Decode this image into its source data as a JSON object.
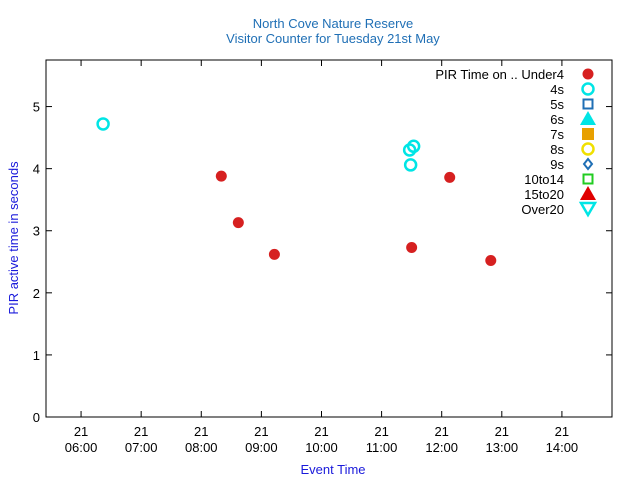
{
  "chart_data": {
    "type": "scatter",
    "title": "North Cove Nature Reserve",
    "subtitle": "Visitor Counter for Tuesday 21st May",
    "xlabel": "Event Time",
    "ylabel": "PIR active time in seconds",
    "legend_title": "PIR Time on .. Under4",
    "legend_position": "top-right",
    "grid": false,
    "xlim": [
      "05:25",
      "14:50"
    ],
    "ylim": [
      0,
      5.75
    ],
    "x_ticks": [
      {
        "day": "21",
        "time": "06:00"
      },
      {
        "day": "21",
        "time": "07:00"
      },
      {
        "day": "21",
        "time": "08:00"
      },
      {
        "day": "21",
        "time": "09:00"
      },
      {
        "day": "21",
        "time": "10:00"
      },
      {
        "day": "21",
        "time": "11:00"
      },
      {
        "day": "21",
        "time": "12:00"
      },
      {
        "day": "21",
        "time": "13:00"
      },
      {
        "day": "21",
        "time": "14:00"
      }
    ],
    "y_ticks": [
      "0",
      "1",
      "2",
      "3",
      "4",
      "5"
    ],
    "series": [
      {
        "name": "Under4",
        "marker": "filled-circle",
        "color": "#d62020",
        "points": [
          {
            "x": "08:20",
            "y": 3.88
          },
          {
            "x": "08:37",
            "y": 3.13
          },
          {
            "x": "09:13",
            "y": 2.62
          },
          {
            "x": "11:30",
            "y": 2.73
          },
          {
            "x": "12:08",
            "y": 3.86
          },
          {
            "x": "12:49",
            "y": 2.52
          }
        ]
      },
      {
        "name": "4s",
        "marker": "open-circle",
        "color": "#00e5e5",
        "points": [
          {
            "x": "06:22",
            "y": 4.72
          },
          {
            "x": "11:28",
            "y": 4.3
          },
          {
            "x": "11:32",
            "y": 4.36
          },
          {
            "x": "11:29",
            "y": 4.06
          }
        ]
      },
      {
        "name": "5s",
        "marker": "open-square",
        "color": "#1f6fb5",
        "points": []
      },
      {
        "name": "6s",
        "marker": "filled-triangle-up",
        "color": "#00e5e5",
        "points": []
      },
      {
        "name": "7s",
        "marker": "filled-square",
        "color": "#e8a000",
        "points": []
      },
      {
        "name": "8s",
        "marker": "open-circle",
        "color": "#f0e000",
        "points": []
      },
      {
        "name": "9s",
        "marker": "open-diamond",
        "color": "#1f6fb5",
        "points": []
      },
      {
        "name": "10to14",
        "marker": "open-square",
        "color": "#22cc22",
        "points": []
      },
      {
        "name": "15to20",
        "marker": "filled-triangle-up",
        "color": "#e00000",
        "points": []
      },
      {
        "name": "Over20",
        "marker": "open-triangle-down",
        "color": "#00e5e5",
        "points": []
      }
    ]
  }
}
